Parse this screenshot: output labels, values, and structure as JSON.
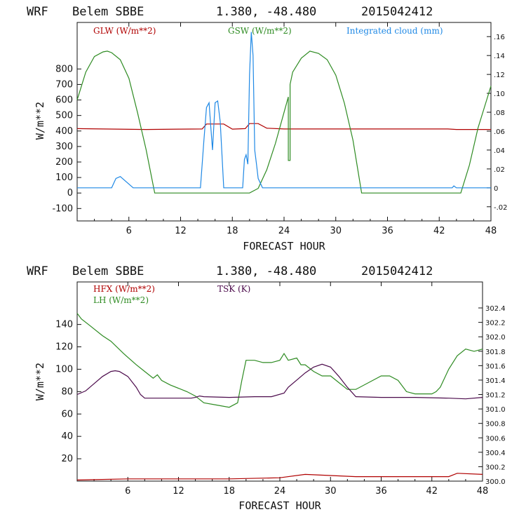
{
  "colors": {
    "glw": "#b00000",
    "gsw": "#2e8b22",
    "cloud": "#1e88e5",
    "hfx": "#b00000",
    "lh": "#2e8b22",
    "tsk": "#4b0a4b"
  },
  "chart_data": [
    {
      "type": "line",
      "title": {
        "model": "WRF",
        "station": "Belem SBBE",
        "coords": "1.380, -48.480",
        "run": "2015042412"
      },
      "xlabel": "FORECAST HOUR",
      "ylabel": "W/m**2",
      "xlim": [
        0,
        48
      ],
      "ylim": [
        -180,
        1100
      ],
      "xticks": [
        "6",
        "12",
        "18",
        "24",
        "30",
        "36",
        "42",
        "48"
      ],
      "yticks": [
        "-100",
        "0",
        "100",
        "200",
        "300",
        "400",
        "500",
        "600",
        "700",
        "800"
      ],
      "y2lim": [
        -0.035,
        0.175
      ],
      "y2ticks": [
        "-.02",
        "0",
        ".02",
        ".04",
        ".06",
        ".08",
        ".10",
        ".12",
        ".14",
        ".16"
      ],
      "series": [
        {
          "name": "GLW (W/m**2)",
          "key": "glw",
          "axis": "left",
          "x": [
            0,
            3,
            8,
            12,
            14.5,
            15,
            17,
            18,
            19.5,
            20,
            21,
            22,
            24,
            36,
            43,
            44,
            48
          ],
          "y": [
            415,
            413,
            410,
            412,
            413,
            445,
            445,
            412,
            415,
            448,
            448,
            418,
            413,
            413,
            413,
            410,
            410
          ]
        },
        {
          "name": "GSW (W/m**2)",
          "key": "gsw",
          "axis": "left",
          "x": [
            0,
            1,
            2,
            3,
            3.5,
            4,
            5,
            6,
            7,
            8,
            9,
            20,
            21,
            22,
            23,
            24,
            24.5,
            24.5,
            24.7,
            24.7,
            25,
            26,
            27,
            28,
            29,
            30,
            31,
            32,
            33,
            44.5,
            45.5,
            46.5,
            47.5,
            48
          ],
          "y": [
            600,
            780,
            880,
            910,
            915,
            905,
            860,
            740,
            520,
            280,
            0,
            0,
            30,
            150,
            320,
            520,
            620,
            210,
            210,
            700,
            780,
            870,
            915,
            900,
            860,
            760,
            580,
            340,
            0,
            0,
            180,
            420,
            600,
            690
          ]
        },
        {
          "name": "Integrated cloud (mm)",
          "key": "cloud",
          "axis": "right",
          "x": [
            0,
            4,
            4.5,
            5,
            5.5,
            6.5,
            14.3,
            14.7,
            15,
            15.3,
            15.5,
            15.7,
            16,
            16.3,
            16.6,
            17,
            19.2,
            19.4,
            19.6,
            19.8,
            20,
            20.2,
            20.4,
            20.6,
            20.8,
            21,
            21.5,
            43.5,
            43.7,
            44,
            48
          ],
          "y": [
            0,
            0,
            0.01,
            0.012,
            0.008,
            0,
            0,
            0.05,
            0.085,
            0.09,
            0.065,
            0.04,
            0.09,
            0.092,
            0.07,
            0,
            0,
            0.03,
            0.035,
            0.025,
            0.12,
            0.165,
            0.14,
            0.04,
            0.025,
            0.01,
            0,
            0,
            0.002,
            0,
            0
          ]
        }
      ],
      "legend": [
        "GLW (W/m**2)",
        "GSW (W/m**2)",
        "Integrated cloud (mm)"
      ]
    },
    {
      "type": "line",
      "title": {
        "model": "WRF",
        "station": "Belem SBBE",
        "coords": "1.380, -48.480",
        "run": "2015042412"
      },
      "xlabel": "FORECAST HOUR",
      "ylabel": "W/m**2",
      "xlim": [
        0,
        48
      ],
      "ylim": [
        0,
        178
      ],
      "xticks": [
        "6",
        "12",
        "18",
        "24",
        "30",
        "36",
        "42",
        "48"
      ],
      "yticks": [
        "20",
        "40",
        "60",
        "80",
        "100",
        "120",
        "140"
      ],
      "y2lim": [
        300.0,
        302.76
      ],
      "y2ticks": [
        "300.0",
        "300.2",
        "300.4",
        "300.6",
        "300.8",
        "301.0",
        "301.2",
        "301.4",
        "301.6",
        "301.8",
        "302.0",
        "302.2",
        "302.4"
      ],
      "series": [
        {
          "name": "HFX (W/m**2)",
          "key": "hfx",
          "axis": "left",
          "x": [
            0,
            6,
            12,
            18,
            24,
            27,
            30,
            33,
            36,
            40,
            44,
            45,
            48
          ],
          "y": [
            1,
            2,
            2,
            2,
            3,
            6,
            5,
            4,
            4,
            4,
            4,
            7,
            6
          ]
        },
        {
          "name": "LH (W/m**2)",
          "key": "lh",
          "axis": "left",
          "x": [
            0,
            0.5,
            1.5,
            3,
            4,
            5.5,
            7,
            8,
            9,
            9.5,
            10,
            11,
            13,
            14,
            15,
            16.5,
            18,
            19,
            19.5,
            20,
            21,
            22,
            23,
            24,
            24.5,
            25,
            26,
            26.5,
            27,
            28,
            29,
            30,
            31,
            32,
            33,
            35,
            36,
            37,
            38,
            39,
            40,
            42,
            42.5,
            43,
            44,
            45,
            46,
            47,
            48
          ],
          "y": [
            150,
            145,
            139,
            130,
            125,
            114,
            104,
            98,
            92,
            95,
            90,
            86,
            80,
            76,
            70,
            68,
            66,
            70,
            90,
            108,
            108,
            106,
            106,
            108,
            114,
            108,
            110,
            104,
            104,
            98,
            94,
            94,
            88,
            82,
            82,
            90,
            94,
            94,
            90,
            80,
            78,
            78,
            80,
            84,
            100,
            112,
            118,
            116,
            118
          ]
        },
        {
          "name": "TSK (K)",
          "key": "tsk",
          "axis": "right",
          "x": [
            0,
            1,
            2,
            3,
            4,
            4.5,
            5,
            6,
            7,
            7.5,
            8,
            12,
            13.5,
            14,
            14.5,
            15,
            18,
            21,
            23,
            24.5,
            25,
            26,
            27,
            28,
            29,
            30,
            31,
            32,
            33,
            36,
            40,
            44,
            46,
            48
          ],
          "y": [
            301.2,
            301.25,
            301.35,
            301.45,
            301.52,
            301.53,
            301.52,
            301.45,
            301.3,
            301.2,
            301.15,
            301.15,
            301.15,
            301.16,
            301.18,
            301.17,
            301.16,
            301.17,
            301.17,
            301.22,
            301.3,
            301.4,
            301.5,
            301.58,
            301.62,
            301.58,
            301.45,
            301.3,
            301.17,
            301.16,
            301.16,
            301.15,
            301.14,
            301.16
          ]
        }
      ],
      "legend": [
        "HFX (W/m**2)",
        "LH  (W/m**2)",
        "TSK (K)"
      ]
    }
  ]
}
